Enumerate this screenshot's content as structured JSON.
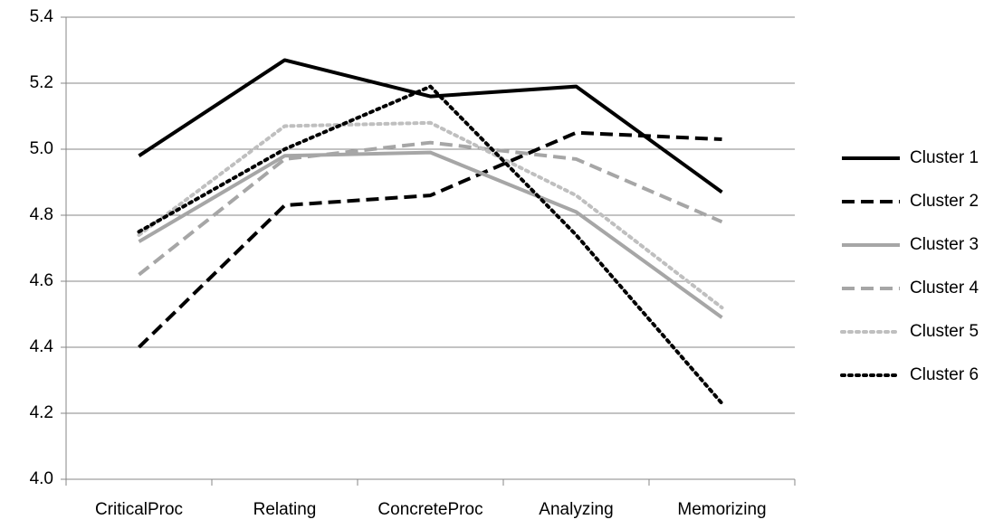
{
  "chart_data": {
    "type": "line",
    "categories": [
      "CriticalProc",
      "Relating",
      "ConcreteProc",
      "Analyzing",
      "Memorizing"
    ],
    "series": [
      {
        "name": "Cluster 1",
        "color": "#000000",
        "dash": "solid",
        "values": [
          4.98,
          5.27,
          5.16,
          5.19,
          4.87
        ]
      },
      {
        "name": "Cluster 2",
        "color": "#000000",
        "dash": "dashed",
        "values": [
          4.4,
          4.83,
          4.86,
          5.05,
          5.03
        ]
      },
      {
        "name": "Cluster 3",
        "color": "#a6a6a6",
        "dash": "solid",
        "values": [
          4.72,
          4.98,
          4.99,
          4.81,
          4.49
        ]
      },
      {
        "name": "Cluster 4",
        "color": "#a6a6a6",
        "dash": "dashed",
        "values": [
          4.62,
          4.97,
          5.02,
          4.97,
          4.78
        ]
      },
      {
        "name": "Cluster 5",
        "color": "#bfbfbf",
        "dash": "dotted",
        "values": [
          4.74,
          5.07,
          5.08,
          4.86,
          4.52
        ]
      },
      {
        "name": "Cluster 6",
        "color": "#000000",
        "dash": "dotted",
        "values": [
          4.75,
          5.0,
          5.19,
          4.74,
          4.23
        ]
      }
    ],
    "ylim": [
      4.0,
      5.4
    ],
    "yticks": [
      {
        "value": 4.0,
        "label": "4.0"
      },
      4.2,
      4.4,
      4.6,
      4.8,
      {
        "value": 5.0,
        "label": "5.0"
      },
      5.2,
      5.4
    ],
    "grid": true,
    "legend": "right"
  }
}
